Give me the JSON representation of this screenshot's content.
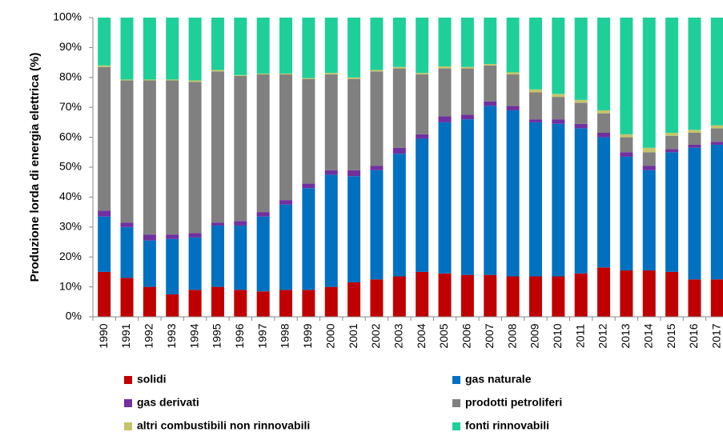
{
  "chart_data": {
    "type": "stacked_bar",
    "y_label": "Produzione lorda di energia elettrica (%)",
    "categories": [
      "1990",
      "1991",
      "1992",
      "1993",
      "1994",
      "1995",
      "1996",
      "1997",
      "1998",
      "1999",
      "2000",
      "2001",
      "2002",
      "2003",
      "2004",
      "2005",
      "2006",
      "2007",
      "2008",
      "2009",
      "2010",
      "2011",
      "2012",
      "2013",
      "2014",
      "2015",
      "2016",
      "2017"
    ],
    "series": [
      {
        "name": "solidi",
        "color": "#c00000",
        "values": [
          15,
          13,
          10,
          7.5,
          9,
          10,
          9,
          8.5,
          9,
          9,
          10,
          11.5,
          12.5,
          13.5,
          15,
          14.5,
          14,
          14,
          13.5,
          13.5,
          13.5,
          14.5,
          16.5,
          15.5,
          15.5,
          15,
          12.5,
          12.5
        ]
      },
      {
        "name": "gas naturale",
        "color": "#0070c0",
        "values": [
          18.5,
          17,
          15.5,
          18.5,
          17.5,
          20.5,
          21.5,
          25,
          28.5,
          34,
          37.5,
          35.5,
          36.5,
          41,
          44.5,
          50.5,
          52,
          56.5,
          55.5,
          51.5,
          51,
          48.5,
          43.5,
          38,
          33.5,
          40,
          44,
          45
        ]
      },
      {
        "name": "gas derivati",
        "color": "#7030a0",
        "values": [
          2,
          1.5,
          2,
          1.5,
          1.5,
          1,
          1.5,
          1.5,
          1.5,
          1.5,
          1.5,
          2,
          1.5,
          2,
          1.5,
          2,
          1.5,
          1.5,
          1.5,
          1,
          1.5,
          1.5,
          1.5,
          1.5,
          1.5,
          1,
          1,
          1
        ]
      },
      {
        "name": "prodotti petroliferi",
        "color": "#808080",
        "values": [
          48,
          47.5,
          51.5,
          51.5,
          50.5,
          50.5,
          48.5,
          46,
          42,
          35,
          32,
          30.5,
          31.5,
          26.5,
          20,
          16,
          15.5,
          12,
          10.5,
          9,
          7.5,
          7,
          6.5,
          5,
          4.5,
          4.5,
          4,
          4.5
        ]
      },
      {
        "name": "altri combustibili non rinnovabili",
        "color": "#c4c46a",
        "values": [
          0.5,
          0.3,
          0.3,
          0.3,
          0.5,
          0.5,
          0.3,
          0.3,
          0.3,
          0.3,
          0.5,
          0.5,
          0.5,
          0.5,
          0.5,
          0.7,
          0.5,
          0.5,
          0.7,
          1,
          1,
          1,
          1,
          1,
          1.5,
          1,
          1,
          1
        ]
      },
      {
        "name": "fonti rinnovabili",
        "color": "#1fcf9a",
        "values": [
          16,
          20.7,
          20.7,
          20.7,
          21,
          17.5,
          19.2,
          18.7,
          18.7,
          20.2,
          18.5,
          20,
          17.5,
          16.5,
          18.5,
          16.3,
          16.5,
          15.5,
          18.3,
          24,
          25.5,
          27.5,
          31,
          39,
          43.5,
          38.5,
          37.5,
          36
        ]
      }
    ],
    "ylim": [
      0,
      100
    ],
    "yticks": [
      {
        "value": 0,
        "label": "0%"
      },
      {
        "value": 10,
        "label": "10%"
      },
      {
        "value": 20,
        "label": "20%"
      },
      {
        "value": 30,
        "label": "30%"
      },
      {
        "value": 40,
        "label": "40%"
      },
      {
        "value": 50,
        "label": "50%"
      },
      {
        "value": 60,
        "label": "60%"
      },
      {
        "value": 70,
        "label": "70%"
      },
      {
        "value": 80,
        "label": "80%"
      },
      {
        "value": 90,
        "label": "90%"
      },
      {
        "value": 100,
        "label": "100%"
      }
    ],
    "grid": false
  }
}
